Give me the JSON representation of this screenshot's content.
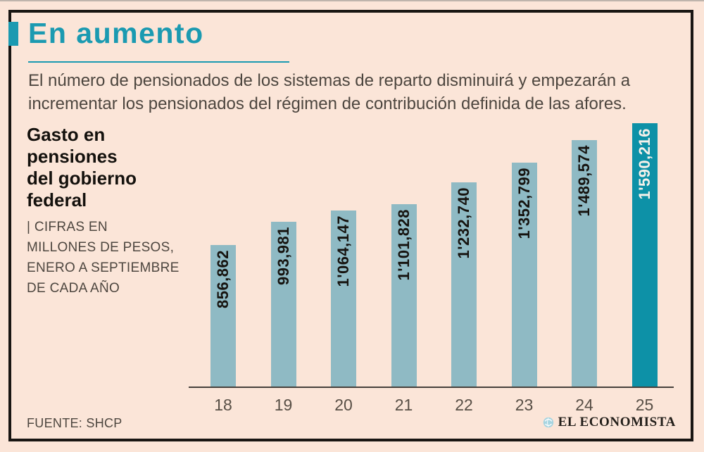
{
  "header": {
    "title": "En aumento",
    "subtitle_lines": [
      "El número de pensionados de los sistemas de reparto disminuirá y empezarán a",
      "incrementar los pensionados del régimen de contribución definida de las afores."
    ]
  },
  "panel_label": {
    "title_lines": [
      "Gasto en",
      "pensiones",
      "del gobierno",
      "federal"
    ],
    "note_lines": [
      "| CIFRAS EN",
      "MILLONES DE PESOS,",
      "ENERO A SEPTIEMBRE",
      "DE CADA AÑO"
    ]
  },
  "footer": {
    "source": "FUENTE: SHCP",
    "brand": "EL ECONOMISTA"
  },
  "colors": {
    "background": "#fbe5d8",
    "frame": "#191613",
    "accent_teal": "#1b9ab1",
    "bar_light": "#8fbac4",
    "bar_highlight": "#0d91a7",
    "text_dark": "#14110d",
    "text_muted": "#4d463f",
    "brand_globe_blue": "#a6d4e0"
  },
  "chart_data": {
    "type": "bar",
    "title": "Gasto en pensiones del gobierno federal",
    "subtitle": "Cifras en millones de pesos, enero a septiembre de cada año",
    "categories": [
      "18",
      "19",
      "20",
      "21",
      "22",
      "23",
      "24",
      "25"
    ],
    "values": [
      856862,
      993981,
      1064147,
      1101828,
      1232740,
      1352799,
      1489574,
      1590216
    ],
    "value_labels": [
      "856,862",
      "993,981",
      "1'064,147",
      "1'101,828",
      "1'232,740",
      "1'352,799",
      "1'489,574",
      "1'590,216"
    ],
    "highlight_index": 7,
    "xlabel": "",
    "ylabel": "",
    "ylim": [
      0,
      1590216
    ],
    "grid": false,
    "legend": false
  }
}
